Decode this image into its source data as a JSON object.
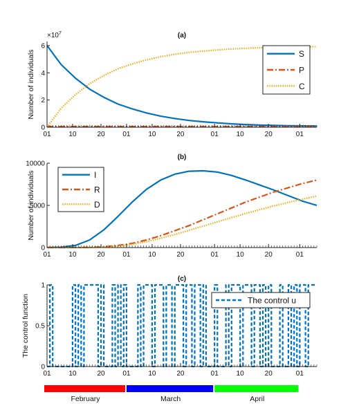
{
  "colors": {
    "S": "#0072BD",
    "P": "#D95319",
    "C": "#EDB120",
    "I": "#0072BD",
    "R": "#D95319",
    "D": "#EDB120",
    "u": "#0072BD",
    "february": "#ff0000",
    "march": "#0000ff",
    "april": "#00ff00"
  },
  "chart_data": [
    {
      "type": "line",
      "title": "(a)",
      "ylabel": "Number of individuals",
      "multiplier": "×10",
      "multiplier_exp": "7",
      "ylim": [
        0,
        6.3
      ],
      "yticks": [
        "0",
        "2",
        "4",
        "6"
      ],
      "xticks": [
        "01",
        "10",
        "20",
        "01",
        "10",
        "20",
        "01",
        "10",
        "20",
        "01"
      ],
      "legend": "top-right",
      "x_unit": "days since 1 February",
      "series": [
        {
          "name": "S",
          "style": "solid",
          "x": [
            0,
            5,
            10,
            15,
            20,
            25,
            30,
            35,
            40,
            45,
            50,
            55,
            60,
            65,
            70,
            75,
            80,
            85,
            90,
            95
          ],
          "values": [
            6.0,
            4.6,
            3.6,
            2.8,
            2.2,
            1.7,
            1.35,
            1.05,
            0.82,
            0.64,
            0.5,
            0.4,
            0.32,
            0.25,
            0.2,
            0.16,
            0.13,
            0.11,
            0.1,
            0.09
          ]
        },
        {
          "name": "P",
          "style": "dashdot",
          "x": [
            0,
            95
          ],
          "values": [
            0.05,
            0.05
          ]
        },
        {
          "name": "C",
          "style": "dotted",
          "x": [
            0,
            5,
            10,
            15,
            20,
            25,
            30,
            35,
            40,
            45,
            50,
            55,
            60,
            65,
            70,
            75,
            80,
            85,
            90,
            95
          ],
          "values": [
            0.0,
            1.4,
            2.4,
            3.2,
            3.8,
            4.3,
            4.65,
            4.95,
            5.18,
            5.36,
            5.5,
            5.6,
            5.68,
            5.75,
            5.8,
            5.84,
            5.87,
            5.89,
            5.91,
            5.92
          ]
        }
      ]
    },
    {
      "type": "line",
      "title": "(b)",
      "ylabel": "Number of individuals",
      "ylim": [
        0,
        10000
      ],
      "yticks": [
        "0",
        "5000",
        "10000"
      ],
      "xticks": [
        "01",
        "10",
        "20",
        "01",
        "10",
        "20",
        "01",
        "10",
        "20",
        "01"
      ],
      "legend": "top-left",
      "x_unit": "days since 1 February",
      "series": [
        {
          "name": "I",
          "style": "solid",
          "x": [
            0,
            5,
            10,
            15,
            20,
            25,
            30,
            35,
            40,
            45,
            50,
            55,
            60,
            65,
            70,
            75,
            80,
            85,
            90,
            95
          ],
          "values": [
            20,
            60,
            250,
            900,
            2100,
            3700,
            5400,
            6900,
            8000,
            8700,
            9050,
            9100,
            8950,
            8550,
            8000,
            7400,
            6800,
            6150,
            5500,
            5000
          ]
        },
        {
          "name": "R",
          "style": "dashdot",
          "x": [
            0,
            5,
            10,
            15,
            20,
            25,
            30,
            35,
            40,
            45,
            50,
            55,
            60,
            65,
            70,
            75,
            80,
            85,
            90,
            95
          ],
          "values": [
            0,
            0,
            10,
            30,
            90,
            250,
            500,
            900,
            1400,
            2000,
            2600,
            3300,
            4000,
            4700,
            5400,
            6000,
            6600,
            7100,
            7600,
            8000
          ]
        },
        {
          "name": "D",
          "style": "dotted",
          "x": [
            0,
            5,
            10,
            15,
            20,
            25,
            30,
            35,
            40,
            45,
            50,
            55,
            60,
            65,
            70,
            75,
            80,
            85,
            90,
            95
          ],
          "values": [
            0,
            0,
            5,
            20,
            60,
            180,
            380,
            700,
            1100,
            1550,
            2050,
            2550,
            3050,
            3550,
            4050,
            4500,
            4950,
            5350,
            5750,
            6100
          ]
        }
      ]
    },
    {
      "type": "line",
      "title": "(c)",
      "ylabel": "The control function",
      "ylim": [
        0,
        1
      ],
      "yticks": [
        "0",
        "0.5",
        "1"
      ],
      "xticks": [
        "01",
        "10",
        "20",
        "01",
        "10",
        "20",
        "01",
        "10",
        "20",
        "01"
      ],
      "legend": "top-right",
      "x_unit": "days since 1 February",
      "series": [
        {
          "name": "The control u",
          "style": "dashed",
          "x": [
            0,
            1,
            1,
            2,
            2,
            9,
            9,
            10,
            10,
            11,
            11,
            12,
            12,
            13,
            13,
            18,
            18,
            19,
            19,
            20,
            20,
            23,
            23,
            24,
            24,
            25,
            25,
            26,
            26,
            27,
            27,
            28,
            28,
            32,
            32,
            33,
            33,
            34,
            34,
            37,
            37,
            38,
            38,
            41,
            41,
            42,
            42,
            44,
            44,
            45,
            45,
            48,
            48,
            49,
            49,
            51,
            51,
            52,
            52,
            54,
            54,
            55,
            55,
            56,
            56,
            59,
            59,
            60,
            60,
            63,
            63,
            64,
            64,
            65,
            65,
            68,
            68,
            69,
            69,
            72,
            72,
            73,
            73,
            75,
            75,
            76,
            76,
            77,
            77,
            78,
            78,
            79,
            79,
            82,
            82,
            83,
            83,
            85,
            85,
            86,
            86,
            87,
            87,
            88,
            88,
            89,
            89,
            91,
            91,
            92,
            92,
            95
          ],
          "values": [
            0,
            0,
            1,
            1,
            0,
            0,
            1,
            1,
            0,
            0,
            1,
            1,
            0,
            0,
            1,
            1,
            0,
            0,
            1,
            1,
            0,
            0,
            1,
            1,
            0,
            0,
            1,
            1,
            0,
            0,
            1,
            1,
            0,
            0,
            1,
            1,
            0,
            0,
            1,
            1,
            0,
            0,
            1,
            1,
            0,
            0,
            1,
            1,
            0,
            0,
            1,
            1,
            0,
            0,
            1,
            1,
            0,
            0,
            1,
            1,
            0,
            0,
            1,
            1,
            0,
            0,
            1,
            1,
            0,
            0,
            1,
            1,
            0,
            0,
            1,
            1,
            0,
            0,
            1,
            1,
            0,
            0,
            1,
            1,
            0,
            0,
            1,
            1,
            0,
            0,
            1,
            1,
            0,
            0,
            1,
            1,
            0,
            0,
            1,
            1,
            0,
            0,
            1,
            1,
            0,
            0,
            1,
            1,
            0,
            0,
            1,
            1
          ]
        }
      ]
    }
  ],
  "months": [
    {
      "label": "February",
      "start_day": 0,
      "end_day": 28
    },
    {
      "label": "March",
      "start_day": 28,
      "end_day": 59
    },
    {
      "label": "April",
      "start_day": 59,
      "end_day": 89
    }
  ]
}
